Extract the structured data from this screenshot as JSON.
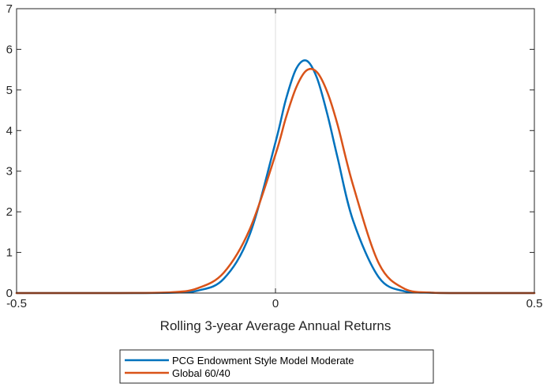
{
  "chart_data": {
    "type": "line",
    "xlabel": "Rolling 3-year Average Annual Returns",
    "ylabel": "",
    "title": "",
    "xlim": [
      -0.5,
      0.5
    ],
    "ylim": [
      0,
      7
    ],
    "xticks": [
      -0.5,
      0,
      0.5
    ],
    "yticks": [
      0,
      1,
      2,
      3,
      4,
      5,
      6,
      7
    ],
    "xtick_labels": [
      "-0.5",
      "0",
      "0.5"
    ],
    "ytick_labels": [
      "0",
      "1",
      "2",
      "3",
      "4",
      "5",
      "6",
      "7"
    ],
    "grid": "x=0 and y=0 only",
    "legend_position": "below-center",
    "series": [
      {
        "name": "PCG Endowment Style Model Moderate",
        "color": "#0072BD",
        "x": [
          -0.5,
          -0.3,
          -0.2,
          -0.15,
          -0.1,
          -0.05,
          0.0,
          0.02,
          0.04,
          0.06,
          0.08,
          0.1,
          0.12,
          0.15,
          0.2,
          0.25,
          0.3,
          0.35,
          0.5
        ],
        "y": [
          0,
          0,
          0.01,
          0.06,
          0.35,
          1.43,
          3.71,
          4.76,
          5.52,
          5.72,
          5.3,
          4.41,
          3.33,
          1.78,
          0.38,
          0.04,
          0.01,
          0,
          0
        ]
      },
      {
        "name": "Global 60/40",
        "color": "#D95319",
        "x": [
          -0.5,
          -0.3,
          -0.2,
          -0.15,
          -0.1,
          -0.05,
          0.0,
          0.02,
          0.04,
          0.06,
          0.08,
          0.1,
          0.12,
          0.15,
          0.2,
          0.25,
          0.3,
          0.35,
          0.5
        ],
        "y": [
          0,
          0,
          0.02,
          0.12,
          0.5,
          1.56,
          3.41,
          4.31,
          5.06,
          5.48,
          5.44,
          4.95,
          4.14,
          2.65,
          0.72,
          0.1,
          0.01,
          0,
          0
        ]
      }
    ]
  }
}
